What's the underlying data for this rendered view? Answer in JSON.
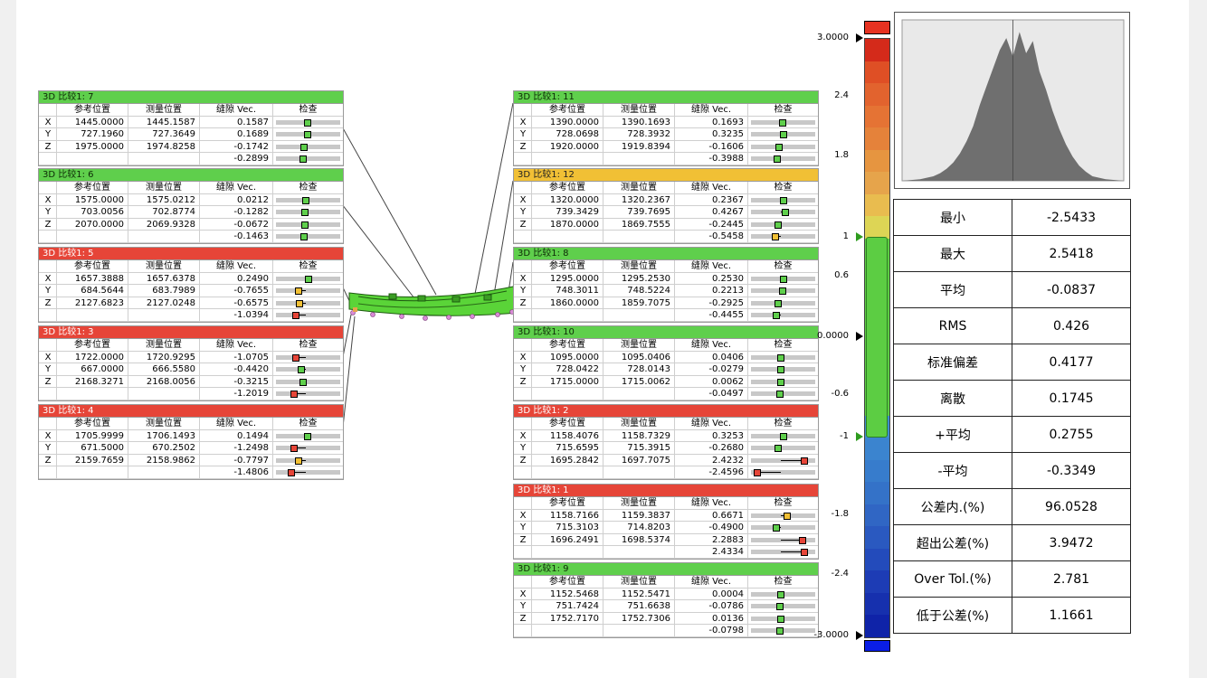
{
  "headers": {
    "col0": "",
    "col1": "参考位置",
    "col2": "测量位置",
    "col3": "缝隙 Vec.",
    "col4": "检查"
  },
  "axis_labels": [
    "X",
    "Y",
    "Z"
  ],
  "status_colors": {
    "green": "#5fcf4c",
    "red": "#e64538",
    "yellow": "#f1c035"
  },
  "panels": [
    {
      "title": "3D 比较1: 7",
      "status": "green",
      "rows": [
        [
          "X",
          "1445.0000",
          "1445.1587",
          "0.1587"
        ],
        [
          "Y",
          "727.1960",
          "727.3649",
          "0.1689"
        ],
        [
          "Z",
          "1975.0000",
          "1974.8258",
          "-0.1742"
        ]
      ],
      "total": "-0.2899",
      "marks": [
        {
          "v": 0.1587,
          "c": "#5fcf4c"
        },
        {
          "v": 0.1689,
          "c": "#5fcf4c"
        },
        {
          "v": -0.1742,
          "c": "#5fcf4c"
        },
        {
          "v": -0.2899,
          "c": "#5fcf4c"
        }
      ]
    },
    {
      "title": "3D 比较1: 6",
      "status": "green",
      "rows": [
        [
          "X",
          "1575.0000",
          "1575.0212",
          "0.0212"
        ],
        [
          "Y",
          "703.0056",
          "702.8774",
          "-0.1282"
        ],
        [
          "Z",
          "2070.0000",
          "2069.9328",
          "-0.0672"
        ]
      ],
      "total": "-0.1463",
      "marks": [
        {
          "v": 0.0212,
          "c": "#5fcf4c"
        },
        {
          "v": -0.1282,
          "c": "#5fcf4c"
        },
        {
          "v": -0.0672,
          "c": "#5fcf4c"
        },
        {
          "v": -0.1463,
          "c": "#5fcf4c"
        }
      ]
    },
    {
      "title": "3D 比较1: 5",
      "status": "red",
      "rows": [
        [
          "X",
          "1657.3888",
          "1657.6378",
          "0.2490"
        ],
        [
          "Y",
          "684.5644",
          "683.7989",
          "-0.7655"
        ],
        [
          "Z",
          "2127.6823",
          "2127.0248",
          "-0.6575"
        ]
      ],
      "total": "-1.0394",
      "marks": [
        {
          "v": 0.249,
          "c": "#5fcf4c"
        },
        {
          "v": -0.7655,
          "c": "#f1c035"
        },
        {
          "v": -0.6575,
          "c": "#f1c035"
        },
        {
          "v": -1.0394,
          "c": "#e64538"
        }
      ]
    },
    {
      "title": "3D 比较1: 3",
      "status": "red",
      "rows": [
        [
          "X",
          "1722.0000",
          "1720.9295",
          "-1.0705"
        ],
        [
          "Y",
          "667.0000",
          "666.5580",
          "-0.4420"
        ],
        [
          "Z",
          "2168.3271",
          "2168.0056",
          "-0.3215"
        ]
      ],
      "total": "-1.2019",
      "marks": [
        {
          "v": -1.0705,
          "c": "#e64538"
        },
        {
          "v": -0.442,
          "c": "#5fcf4c"
        },
        {
          "v": -0.3215,
          "c": "#5fcf4c"
        },
        {
          "v": -1.2019,
          "c": "#e64538"
        }
      ]
    },
    {
      "title": "3D 比较1: 4",
      "status": "red",
      "rows": [
        [
          "X",
          "1705.9999",
          "1706.1493",
          "0.1494"
        ],
        [
          "Y",
          "671.5000",
          "670.2502",
          "-1.2498"
        ],
        [
          "Z",
          "2159.7659",
          "2158.9862",
          "-0.7797"
        ]
      ],
      "total": "-1.4806",
      "marks": [
        {
          "v": 0.1494,
          "c": "#5fcf4c"
        },
        {
          "v": -1.2498,
          "c": "#e64538"
        },
        {
          "v": -0.7797,
          "c": "#f1c035"
        },
        {
          "v": -1.4806,
          "c": "#e64538"
        }
      ]
    },
    {
      "title": "3D 比较1: 11",
      "status": "green",
      "rows": [
        [
          "X",
          "1390.0000",
          "1390.1693",
          "0.1693"
        ],
        [
          "Y",
          "728.0698",
          "728.3932",
          "0.3235"
        ],
        [
          "Z",
          "1920.0000",
          "1919.8394",
          "-0.1606"
        ]
      ],
      "total": "-0.3988",
      "marks": [
        {
          "v": 0.1693,
          "c": "#5fcf4c"
        },
        {
          "v": 0.3235,
          "c": "#5fcf4c"
        },
        {
          "v": -0.1606,
          "c": "#5fcf4c"
        },
        {
          "v": -0.3988,
          "c": "#5fcf4c"
        }
      ]
    },
    {
      "title": "3D 比较1: 12",
      "status": "yellow",
      "rows": [
        [
          "X",
          "1320.0000",
          "1320.2367",
          "0.2367"
        ],
        [
          "Y",
          "739.3429",
          "739.7695",
          "0.4267"
        ],
        [
          "Z",
          "1870.0000",
          "1869.7555",
          "-0.2445"
        ]
      ],
      "total": "-0.5458",
      "marks": [
        {
          "v": 0.2367,
          "c": "#5fcf4c"
        },
        {
          "v": 0.4267,
          "c": "#5fcf4c"
        },
        {
          "v": -0.2445,
          "c": "#5fcf4c"
        },
        {
          "v": -0.5458,
          "c": "#f1c035"
        }
      ]
    },
    {
      "title": "3D 比较1: 8",
      "status": "green",
      "rows": [
        [
          "X",
          "1295.0000",
          "1295.2530",
          "0.2530"
        ],
        [
          "Y",
          "748.3011",
          "748.5224",
          "0.2213"
        ],
        [
          "Z",
          "1860.0000",
          "1859.7075",
          "-0.2925"
        ]
      ],
      "total": "-0.4455",
      "marks": [
        {
          "v": 0.253,
          "c": "#5fcf4c"
        },
        {
          "v": 0.2213,
          "c": "#5fcf4c"
        },
        {
          "v": -0.2925,
          "c": "#5fcf4c"
        },
        {
          "v": -0.4455,
          "c": "#5fcf4c"
        }
      ]
    },
    {
      "title": "3D 比较1: 10",
      "status": "green",
      "rows": [
        [
          "X",
          "1095.0000",
          "1095.0406",
          "0.0406"
        ],
        [
          "Y",
          "728.0422",
          "728.0143",
          "-0.0279"
        ],
        [
          "Z",
          "1715.0000",
          "1715.0062",
          "0.0062"
        ]
      ],
      "total": "-0.0497",
      "marks": [
        {
          "v": 0.0406,
          "c": "#5fcf4c"
        },
        {
          "v": -0.0279,
          "c": "#5fcf4c"
        },
        {
          "v": 0.0062,
          "c": "#5fcf4c"
        },
        {
          "v": -0.0497,
          "c": "#5fcf4c"
        }
      ]
    },
    {
      "title": "3D 比较1: 2",
      "status": "red",
      "rows": [
        [
          "X",
          "1158.4076",
          "1158.7329",
          "0.3253"
        ],
        [
          "Y",
          "715.6595",
          "715.3915",
          "-0.2680"
        ],
        [
          "Z",
          "1695.2842",
          "1697.7075",
          "2.4232"
        ]
      ],
      "total": "-2.4596",
      "marks": [
        {
          "v": 0.3253,
          "c": "#5fcf4c"
        },
        {
          "v": -0.268,
          "c": "#5fcf4c"
        },
        {
          "v": 2.4232,
          "c": "#e64538"
        },
        {
          "v": -2.4596,
          "c": "#e64538"
        }
      ]
    },
    {
      "title": "3D 比较1: 1",
      "status": "red",
      "rows": [
        [
          "X",
          "1158.7166",
          "1159.3837",
          "0.6671"
        ],
        [
          "Y",
          "715.3103",
          "714.8203",
          "-0.4900"
        ],
        [
          "Z",
          "1696.2491",
          "1698.5374",
          "2.2883"
        ]
      ],
      "total": "2.4334",
      "marks": [
        {
          "v": 0.6671,
          "c": "#f1c035"
        },
        {
          "v": -0.49,
          "c": "#5fcf4c"
        },
        {
          "v": 2.2883,
          "c": "#e64538"
        },
        {
          "v": 2.4334,
          "c": "#e64538"
        }
      ]
    },
    {
      "title": "3D 比较1: 9",
      "status": "green",
      "rows": [
        [
          "X",
          "1152.5468",
          "1152.5471",
          "0.0004"
        ],
        [
          "Y",
          "751.7424",
          "751.6638",
          "-0.0786"
        ],
        [
          "Z",
          "1752.7170",
          "1752.7306",
          "0.0136"
        ]
      ],
      "total": "-0.0798",
      "marks": [
        {
          "v": 0.0004,
          "c": "#5fcf4c"
        },
        {
          "v": -0.0786,
          "c": "#5fcf4c"
        },
        {
          "v": 0.0136,
          "c": "#5fcf4c"
        },
        {
          "v": -0.0798,
          "c": "#5fcf4c"
        }
      ]
    }
  ],
  "color_scale": {
    "labels": [
      "3.0000",
      "2.4",
      "1.8",
      "1",
      "0.6",
      "0.0000",
      "-0.6",
      "-1",
      "-1.8",
      "-2.4",
      "-3.0000"
    ],
    "colors": [
      "#d42a1a",
      "#df4f25",
      "#e2632e",
      "#e57334",
      "#e5823a",
      "#e69540",
      "#e6a44b",
      "#e9bc4f",
      "#ddd555",
      "#5ccd43",
      "#5ccd43",
      "#5ccd43",
      "#5ccd43",
      "#5ccd43",
      "#5ccd43",
      "#5ccd43",
      "#5ccd43",
      "#3e8cd2",
      "#3b84cf",
      "#377ccc",
      "#3472c8",
      "#3066c4",
      "#2a59c0",
      "#234bbb",
      "#1d3cb5",
      "#1630ae",
      "#0f23a8"
    ],
    "over_color": "#e63221",
    "under_color": "#0a1ee6"
  },
  "histogram": {
    "heights": [
      0.01,
      0.02,
      0.03,
      0.05,
      0.08,
      0.12,
      0.18,
      0.26,
      0.36,
      0.5,
      0.62,
      0.74,
      0.86,
      0.94,
      0.82,
      0.98,
      0.84,
      0.92,
      0.72,
      0.6,
      0.46,
      0.34,
      0.24,
      0.16,
      0.1,
      0.06,
      0.03,
      0.02,
      0.01
    ]
  },
  "stats": [
    {
      "label": "最小",
      "value": "-2.5433"
    },
    {
      "label": "最大",
      "value": "2.5418"
    },
    {
      "label": "平均",
      "value": "-0.0837"
    },
    {
      "label": "RMS",
      "value": "0.426"
    },
    {
      "label": "标准偏差",
      "value": "0.4177"
    },
    {
      "label": "离散",
      "value": "0.1745"
    },
    {
      "label": "+平均",
      "value": "0.2755"
    },
    {
      "label": "-平均",
      "value": "-0.3349"
    },
    {
      "label": "公差内.(%)",
      "value": "96.0528"
    },
    {
      "label": "超出公差(%)",
      "value": "3.9472"
    },
    {
      "label": "Over Tol.(%)",
      "value": "2.781"
    },
    {
      "label": "低于公差(%)",
      "value": "1.1661"
    }
  ]
}
